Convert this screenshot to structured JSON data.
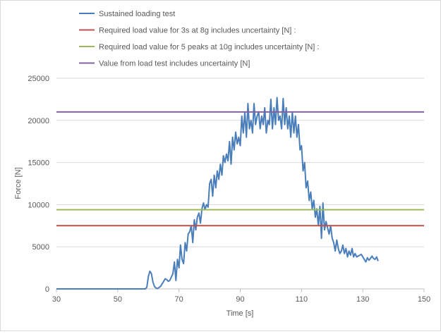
{
  "chart_data": {
    "type": "line",
    "title": "",
    "xlabel": "Time [s]",
    "ylabel": "Force [N]",
    "xlim": [
      30,
      150
    ],
    "ylim": [
      0,
      25000
    ],
    "xticks": [
      30,
      50,
      70,
      90,
      110,
      130,
      150
    ],
    "yticks": [
      0,
      5000,
      10000,
      15000,
      20000,
      25000
    ],
    "xtick_labels": [
      "30",
      "50",
      "70",
      "90",
      "110",
      "130",
      "150"
    ],
    "ytick_labels": [
      "0",
      "5000",
      "10000",
      "15000",
      "20000",
      "25000"
    ],
    "grid": "horizontal",
    "legend_position": "top",
    "series": [
      {
        "name": "Sustained loading test",
        "color": "#4a7ebb",
        "x": [
          30,
          40,
          50,
          55,
          59,
          59.5,
          60,
          60.5,
          61,
          61.5,
          62,
          62.5,
          63,
          64,
          65,
          65.5,
          66,
          66.5,
          67,
          68,
          68.5,
          69,
          69.5,
          70,
          70.5,
          71,
          71.5,
          72,
          72.5,
          73,
          73.5,
          74,
          74.5,
          75,
          75.5,
          76,
          76.5,
          77,
          77.5,
          78,
          78.5,
          79,
          79.5,
          80,
          80.5,
          81,
          81.5,
          82,
          82.5,
          83,
          83.5,
          84,
          84.5,
          85,
          85.5,
          86,
          86.5,
          87,
          87.5,
          88,
          88.5,
          89,
          89.5,
          90,
          90.5,
          91,
          91.5,
          92,
          92.5,
          93,
          93.5,
          94,
          94.5,
          95,
          95.5,
          96,
          96.5,
          97,
          97.5,
          98,
          98.5,
          99,
          99.5,
          100,
          100.5,
          101,
          101.5,
          102,
          102.5,
          103,
          103.5,
          104,
          104.5,
          105,
          105.5,
          106,
          106.5,
          107,
          107.5,
          108,
          108.5,
          109,
          109.5,
          110,
          110.5,
          111,
          111.5,
          112,
          112.5,
          113,
          113.5,
          114,
          114.5,
          115,
          115.5,
          116,
          116.5,
          117,
          117.5,
          118,
          119,
          119.5,
          120,
          120.5,
          121,
          121.5,
          122,
          122.5,
          123,
          123.5,
          124,
          124.5,
          125,
          125.5,
          126,
          126.5,
          127,
          127.5,
          128,
          129,
          129.5,
          130,
          130.5,
          131,
          131.5,
          132,
          132.5,
          133,
          133.5,
          134,
          134.5,
          135
        ],
        "y": [
          0,
          0,
          0,
          0,
          0,
          200,
          1500,
          2100,
          1800,
          800,
          300,
          100,
          50,
          300,
          900,
          1200,
          1100,
          900,
          1000,
          1800,
          3200,
          1000,
          3500,
          2500,
          5200,
          3500,
          3000,
          5500,
          4500,
          6500,
          6800,
          7500,
          5500,
          8200,
          7000,
          8500,
          9000,
          7800,
          9500,
          10200,
          9400,
          10000,
          9700,
          12500,
          13000,
          11000,
          13500,
          12000,
          14000,
          13000,
          14800,
          13500,
          15800,
          15000,
          16000,
          15200,
          17500,
          14800,
          18000,
          16500,
          18600,
          17200,
          18000,
          17000,
          20500,
          18500,
          21000,
          18000,
          22000,
          19000,
          20000,
          18500,
          22000,
          19500,
          20500,
          21000,
          19000,
          20500,
          19500,
          21500,
          18500,
          20000,
          19500,
          22500,
          19000,
          21500,
          19500,
          22700,
          20000,
          20500,
          19000,
          22600,
          19500,
          21500,
          19000,
          20500,
          18000,
          21000,
          18500,
          20500,
          18000,
          19500,
          16500,
          17000,
          14000,
          15000,
          12000,
          12800,
          10500,
          11500,
          9500,
          10500,
          8500,
          9500,
          7500,
          9800,
          6000,
          10200,
          7000,
          8000,
          6500,
          7500,
          6000,
          5500,
          4500,
          5800,
          4800,
          4200,
          4500,
          5200,
          4200,
          4800,
          3800,
          4500,
          4000,
          4800,
          3800,
          4200,
          3800,
          4000,
          4100,
          3800,
          3500,
          3200,
          3700,
          3400,
          3600,
          3900,
          3600,
          3500,
          3800,
          3300
        ]
      },
      {
        "name": "Required load value for 3s at 8g includes uncertainty [N] :",
        "color": "#c0504d",
        "y_const": 7500
      },
      {
        "name": "Required load value for 5 peaks at 10g includes uncertainty [N] :",
        "color": "#9bbb59",
        "y_const": 9400
      },
      {
        "name": "Value from load test includes uncertainty [N]",
        "color": "#8064a2",
        "y_const": 21000
      }
    ]
  }
}
